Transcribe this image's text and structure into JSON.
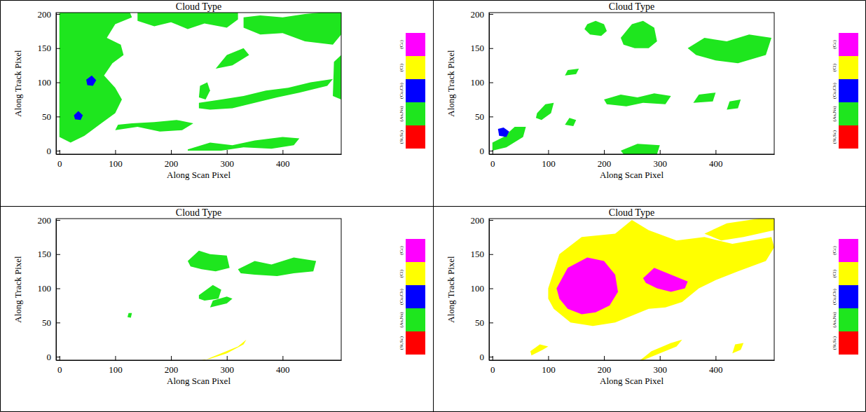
{
  "chart_data": [
    {
      "type": "map",
      "title": "Cloud Type",
      "x_label": "Along Scan Pixel",
      "y_label": "Along Track Pixel",
      "xlim": [
        -6,
        505
      ],
      "ylim": [
        -5,
        202
      ],
      "xticks": [
        0,
        100,
        200,
        300,
        400
      ],
      "yticks": [
        0,
        50,
        100,
        150,
        200
      ],
      "classes": [
        {
          "name": "(St,Sc)",
          "color": "#ff0000"
        },
        {
          "name": "(As,Ns)",
          "color": "#1ee61e"
        },
        {
          "name": "(Cu,Cb)",
          "color": "#0000ff"
        },
        {
          "name": "(Ci)",
          "color": "#ffff00"
        },
        {
          "name": "(Cc)",
          "color": "#ff00ff"
        }
      ],
      "regions": [
        {
          "class": 1,
          "x": [
            0,
            20,
            45,
            75,
            100,
            112,
            100,
            80,
            95,
            115,
            110,
            85,
            100,
            130,
            125,
            0
          ],
          "y": [
            20,
            12,
            22,
            40,
            55,
            75,
            92,
            110,
            128,
            140,
            155,
            165,
            185,
            195,
            205,
            205
          ]
        },
        {
          "class": 1,
          "x": [
            140,
            170,
            200,
            230,
            260,
            300,
            320,
            320,
            140
          ],
          "y": [
            190,
            182,
            188,
            178,
            186,
            180,
            192,
            205,
            205
          ]
        },
        {
          "class": 1,
          "x": [
            330,
            360,
            400,
            440,
            490,
            505,
            505,
            440,
            400,
            360,
            330
          ],
          "y": [
            180,
            170,
            172,
            160,
            155,
            170,
            205,
            200,
            195,
            198,
            195
          ]
        },
        {
          "class": 1,
          "x": [
            250,
            290,
            330,
            370,
            410,
            450,
            490,
            480,
            430,
            390,
            350,
            310,
            270,
            250
          ],
          "y": [
            70,
            75,
            80,
            88,
            92,
            100,
            105,
            95,
            85,
            78,
            70,
            62,
            60,
            62
          ]
        },
        {
          "class": 1,
          "x": [
            250,
            262,
            270,
            265,
            252
          ],
          "y": [
            78,
            75,
            88,
            100,
            95
          ]
        },
        {
          "class": 1,
          "x": [
            230,
            270,
            310,
            350,
            400,
            430,
            420,
            380,
            330,
            290,
            250,
            230
          ],
          "y": [
            2,
            12,
            8,
            15,
            20,
            18,
            8,
            3,
            5,
            0,
            0,
            0
          ]
        },
        {
          "class": 1,
          "x": [
            100,
            140,
            180,
            220,
            240,
            210,
            170,
            130,
            105
          ],
          "y": [
            30,
            35,
            28,
            30,
            40,
            45,
            42,
            40,
            38
          ]
        },
        {
          "class": 1,
          "x": [
            490,
            505,
            505,
            492
          ],
          "y": [
            80,
            75,
            140,
            130
          ]
        },
        {
          "class": 1,
          "x": [
            280,
            310,
            340,
            330,
            300
          ],
          "y": [
            120,
            125,
            140,
            150,
            140
          ]
        },
        {
          "class": 2,
          "x": [
            50,
            60,
            66,
            58,
            48
          ],
          "y": [
            96,
            95,
            103,
            110,
            104
          ]
        },
        {
          "class": 2,
          "x": [
            28,
            38,
            42,
            34,
            26
          ],
          "y": [
            46,
            45,
            52,
            58,
            52
          ]
        }
      ]
    },
    {
      "type": "map",
      "title": "Cloud Type",
      "x_label": "Along Scan Pixel",
      "y_label": "Along Track Pixel",
      "xlim": [
        -6,
        505
      ],
      "ylim": [
        -5,
        202
      ],
      "xticks": [
        0,
        100,
        200,
        300,
        400
      ],
      "yticks": [
        0,
        50,
        100,
        150,
        200
      ],
      "classes": [
        {
          "name": "(St,Sc)",
          "color": "#ff0000"
        },
        {
          "name": "(As,Ns)",
          "color": "#1ee61e"
        },
        {
          "name": "(Cu,Cb)",
          "color": "#0000ff"
        },
        {
          "name": "(Ci)",
          "color": "#ffff00"
        },
        {
          "name": "(Cc)",
          "color": "#ff00ff"
        }
      ],
      "regions": [
        {
          "class": 1,
          "x": [
            170,
            185,
            200,
            205,
            195,
            175,
            165
          ],
          "y": [
            185,
            190,
            185,
            175,
            168,
            170,
            178
          ]
        },
        {
          "class": 1,
          "x": [
            230,
            250,
            270,
            290,
            295,
            280,
            255,
            235
          ],
          "y": [
            165,
            185,
            190,
            180,
            160,
            150,
            150,
            155
          ]
        },
        {
          "class": 1,
          "x": [
            350,
            380,
            420,
            460,
            500,
            490,
            440,
            400,
            365
          ],
          "y": [
            150,
            165,
            160,
            170,
            165,
            140,
            128,
            132,
            140
          ]
        },
        {
          "class": 1,
          "x": [
            200,
            230,
            260,
            290,
            320,
            310,
            270,
            240,
            205
          ],
          "y": [
            75,
            82,
            78,
            84,
            80,
            68,
            70,
            65,
            68
          ]
        },
        {
          "class": 1,
          "x": [
            80,
            95,
            110,
            105,
            88,
            78
          ],
          "y": [
            55,
            68,
            70,
            55,
            45,
            48
          ]
        },
        {
          "class": 1,
          "x": [
            0,
            25,
            55,
            60,
            40,
            20,
            0
          ],
          "y": [
            0,
            5,
            20,
            35,
            35,
            20,
            12
          ]
        },
        {
          "class": 2,
          "x": [
            12,
            25,
            30,
            20,
            10
          ],
          "y": [
            22,
            20,
            28,
            34,
            32
          ]
        },
        {
          "class": 1,
          "x": [
            230,
            260,
            300,
            295,
            265,
            235
          ],
          "y": [
            0,
            10,
            8,
            -5,
            -5,
            -5
          ]
        },
        {
          "class": 1,
          "x": [
            130,
            145,
            150,
            138
          ],
          "y": [
            38,
            36,
            45,
            48
          ]
        },
        {
          "class": 1,
          "x": [
            360,
            395,
            400,
            370
          ],
          "y": [
            70,
            72,
            85,
            82
          ]
        },
        {
          "class": 1,
          "x": [
            420,
            440,
            445,
            425
          ],
          "y": [
            60,
            62,
            75,
            72
          ]
        },
        {
          "class": 1,
          "x": [
            130,
            150,
            155,
            135
          ],
          "y": [
            110,
            112,
            120,
            118
          ]
        }
      ]
    },
    {
      "type": "map",
      "title": "Cloud Type",
      "x_label": "Along Scan Pixel",
      "y_label": "Along Track Pixel",
      "xlim": [
        -6,
        505
      ],
      "ylim": [
        -5,
        202
      ],
      "xticks": [
        0,
        100,
        200,
        300,
        400
      ],
      "yticks": [
        0,
        50,
        100,
        150,
        200
      ],
      "classes": [
        {
          "name": "(St,Sc)",
          "color": "#ff0000"
        },
        {
          "name": "(As,Ns)",
          "color": "#1ee61e"
        },
        {
          "name": "(Cu,Cb)",
          "color": "#0000ff"
        },
        {
          "name": "(Ci)",
          "color": "#ffff00"
        },
        {
          "name": "(Cc)",
          "color": "#ff00ff"
        }
      ],
      "regions": [
        {
          "class": 1,
          "x": [
            230,
            250,
            270,
            300,
            305,
            280,
            255,
            235
          ],
          "y": [
            140,
            155,
            150,
            148,
            130,
            125,
            128,
            132
          ]
        },
        {
          "class": 1,
          "x": [
            320,
            350,
            380,
            420,
            460,
            455,
            420,
            390,
            350,
            325
          ],
          "y": [
            128,
            140,
            135,
            145,
            140,
            125,
            122,
            118,
            120,
            122
          ]
        },
        {
          "class": 1,
          "x": [
            250,
            275,
            290,
            285,
            260,
            250
          ],
          "y": [
            90,
            105,
            98,
            85,
            82,
            85
          ]
        },
        {
          "class": 1,
          "x": [
            270,
            300,
            310,
            300,
            275
          ],
          "y": [
            72,
            78,
            85,
            88,
            82
          ]
        },
        {
          "class": 1,
          "x": [
            122,
            128,
            130,
            124
          ],
          "y": [
            58,
            57,
            64,
            64
          ]
        },
        {
          "class": 3,
          "x": [
            260,
            290,
            320,
            335,
            330,
            300,
            270,
            255
          ],
          "y": [
            -5,
            5,
            15,
            25,
            18,
            5,
            -3,
            -5
          ]
        }
      ]
    },
    {
      "type": "map",
      "title": "Cloud Type",
      "x_label": "Along Scan Pixel",
      "y_label": "Along Track Pixel",
      "xlim": [
        -6,
        505
      ],
      "ylim": [
        -5,
        202
      ],
      "xticks": [
        0,
        100,
        200,
        300,
        400
      ],
      "yticks": [
        0,
        50,
        100,
        150,
        200
      ],
      "classes": [
        {
          "name": "(St,Sc)",
          "color": "#ff0000"
        },
        {
          "name": "(As,Ns)",
          "color": "#1ee61e"
        },
        {
          "name": "(Cu,Cb)",
          "color": "#0000ff"
        },
        {
          "name": "(Ci)",
          "color": "#ffff00"
        },
        {
          "name": "(Cc)",
          "color": "#ff00ff"
        }
      ],
      "regions": [
        {
          "class": 3,
          "x": [
            100,
            120,
            160,
            220,
            250,
            280,
            330,
            380,
            430,
            500,
            505,
            490,
            440,
            400,
            370,
            340,
            310,
            280,
            250,
            220,
            180,
            140,
            110,
            100
          ],
          "y": [
            100,
            150,
            175,
            180,
            200,
            185,
            170,
            175,
            165,
            175,
            160,
            140,
            125,
            112,
            100,
            80,
            72,
            70,
            60,
            50,
            45,
            50,
            70,
            85
          ]
        },
        {
          "class": 3,
          "x": [
            380,
            420,
            460,
            505,
            505,
            450,
            410
          ],
          "y": [
            180,
            195,
            200,
            205,
            185,
            175,
            170
          ]
        },
        {
          "class": 3,
          "x": [
            70,
            90,
            100,
            85,
            68
          ],
          "y": [
            2,
            10,
            15,
            18,
            8
          ]
        },
        {
          "class": 3,
          "x": [
            270,
            300,
            330,
            340,
            320,
            285,
            265
          ],
          "y": [
            -5,
            5,
            15,
            25,
            20,
            8,
            -5
          ]
        },
        {
          "class": 3,
          "x": [
            430,
            445,
            450,
            435
          ],
          "y": [
            5,
            10,
            20,
            18
          ]
        },
        {
          "class": 4,
          "x": [
            115,
            135,
            170,
            200,
            220,
            225,
            210,
            185,
            160,
            135,
            120
          ],
          "y": [
            100,
            130,
            145,
            140,
            120,
            95,
            75,
            65,
            62,
            70,
            85
          ]
        },
        {
          "class": 4,
          "x": [
            270,
            290,
            320,
            350,
            345,
            320,
            295,
            275
          ],
          "y": [
            115,
            130,
            120,
            110,
            100,
            95,
            100,
            108
          ]
        }
      ]
    }
  ]
}
